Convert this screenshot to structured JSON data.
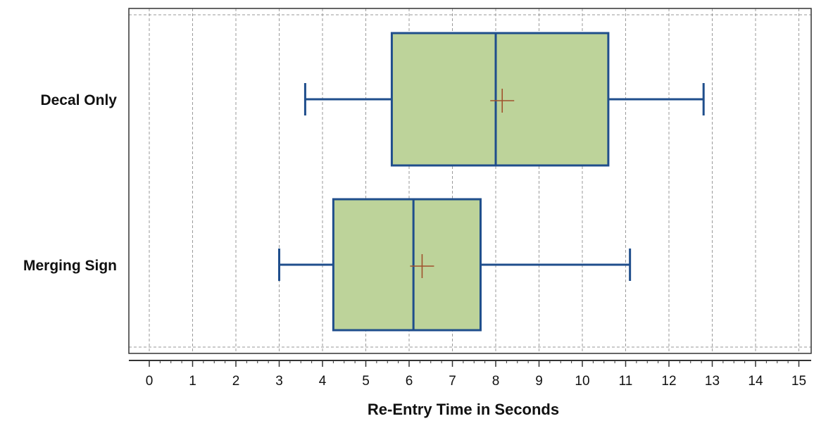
{
  "chart_data": {
    "type": "boxplot",
    "orientation": "horizontal",
    "title": "",
    "xlabel": "Re-Entry Time in Seconds",
    "ylabel": "",
    "xlim": [
      0,
      15
    ],
    "xticks": [
      "0",
      "1",
      "2",
      "3",
      "4",
      "5",
      "6",
      "7",
      "8",
      "9",
      "10",
      "11",
      "12",
      "13",
      "14",
      "15"
    ],
    "grid": "vertical dashed",
    "categories": [
      "Decal Only",
      "Merging Sign"
    ],
    "boxes": [
      {
        "category": "Decal Only",
        "whisker_low": 3.6,
        "q1": 5.6,
        "median": 8.0,
        "q3": 10.6,
        "whisker_high": 12.8,
        "mean": 8.15
      },
      {
        "category": "Merging Sign",
        "whisker_low": 3.0,
        "q1": 4.25,
        "median": 6.1,
        "q3": 7.65,
        "whisker_high": 11.1,
        "mean": 6.3
      }
    ],
    "colors": {
      "box_fill": "#bdd39a",
      "box_stroke": "#1f4e8c",
      "mean_marker": "#a0522d",
      "grid": "#9a9a9a"
    }
  }
}
